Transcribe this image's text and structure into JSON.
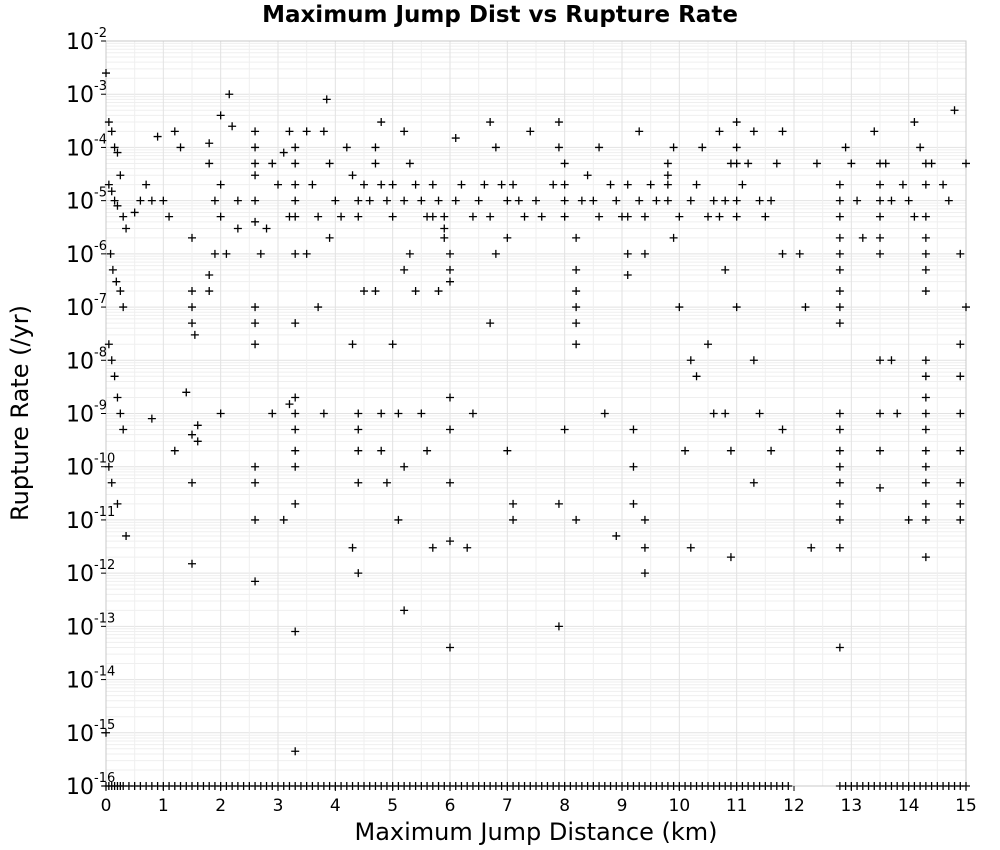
{
  "chart_data": {
    "type": "scatter",
    "title": "Maximum Jump Dist vs Rupture Rate",
    "xlabel": "Maximum Jump Distance (km)",
    "ylabel": "Rupture Rate (/yr)",
    "xlim": [
      0,
      15
    ],
    "ylim": [
      1e-16,
      0.01
    ],
    "yscale": "log",
    "grid": true,
    "marker": "plus",
    "marker_color": "#000000",
    "x_ticks": [
      "0",
      "1",
      "2",
      "3",
      "4",
      "5",
      "6",
      "7",
      "8",
      "9",
      "10",
      "11",
      "12",
      "13",
      "14",
      "15"
    ],
    "y_ticks": [
      {
        "base": "10",
        "exp": "-2"
      },
      {
        "base": "10",
        "exp": "-3"
      },
      {
        "base": "10",
        "exp": "-4"
      },
      {
        "base": "10",
        "exp": "-5"
      },
      {
        "base": "10",
        "exp": "-6"
      },
      {
        "base": "10",
        "exp": "-7"
      },
      {
        "base": "10",
        "exp": "-8"
      },
      {
        "base": "10",
        "exp": "-9"
      },
      {
        "base": "10",
        "exp": "-10"
      },
      {
        "base": "10",
        "exp": "-11"
      },
      {
        "base": "10",
        "exp": "-12"
      },
      {
        "base": "10",
        "exp": "-13"
      },
      {
        "base": "10",
        "exp": "-14"
      },
      {
        "base": "10",
        "exp": "-15"
      },
      {
        "base": "10",
        "exp": "-16"
      }
    ],
    "points": [
      [
        0.0,
        0.0025
      ],
      [
        0.05,
        0.0003
      ],
      [
        0.1,
        0.0002
      ],
      [
        0.15,
        0.0001
      ],
      [
        0.2,
        8e-05
      ],
      [
        0.25,
        3e-05
      ],
      [
        0.05,
        2e-05
      ],
      [
        0.1,
        1.5e-05
      ],
      [
        0.15,
        1e-05
      ],
      [
        0.2,
        8e-06
      ],
      [
        0.3,
        5e-06
      ],
      [
        0.35,
        3e-06
      ],
      [
        0.08,
        1e-06
      ],
      [
        0.12,
        5e-07
      ],
      [
        0.18,
        3e-07
      ],
      [
        0.25,
        2e-07
      ],
      [
        0.3,
        1e-07
      ],
      [
        0.05,
        2e-08
      ],
      [
        0.1,
        1e-08
      ],
      [
        0.15,
        5e-09
      ],
      [
        0.2,
        2e-09
      ],
      [
        0.25,
        1e-09
      ],
      [
        0.3,
        5e-10
      ],
      [
        0.05,
        1e-10
      ],
      [
        0.1,
        5e-11
      ],
      [
        0.2,
        2e-11
      ],
      [
        0.35,
        5e-12
      ],
      [
        0.0,
        1e-15
      ],
      [
        0.5,
        6e-06
      ],
      [
        0.6,
        1e-05
      ],
      [
        0.7,
        2e-05
      ],
      [
        0.8,
        1e-05
      ],
      [
        0.9,
        0.00016
      ],
      [
        0.8,
        8e-10
      ],
      [
        1.0,
        1e-05
      ],
      [
        1.1,
        5e-06
      ],
      [
        1.2,
        0.0002
      ],
      [
        1.3,
        0.0001
      ],
      [
        1.2,
        2e-10
      ],
      [
        1.4,
        2.5e-09
      ],
      [
        1.5,
        2e-06
      ],
      [
        1.5,
        2e-07
      ],
      [
        1.5,
        1e-07
      ],
      [
        1.5,
        5e-08
      ],
      [
        1.55,
        3e-08
      ],
      [
        1.5,
        4e-10
      ],
      [
        1.5,
        5e-11
      ],
      [
        1.5,
        1.5e-12
      ],
      [
        1.6,
        6e-10
      ],
      [
        1.6,
        3e-10
      ],
      [
        1.8,
        0.00012
      ],
      [
        1.8,
        5e-05
      ],
      [
        1.8,
        4e-07
      ],
      [
        1.8,
        2e-07
      ],
      [
        1.9,
        1e-05
      ],
      [
        1.9,
        1e-06
      ],
      [
        2.0,
        0.0004
      ],
      [
        2.0,
        2e-05
      ],
      [
        2.0,
        5e-06
      ],
      [
        2.1,
        1e-06
      ],
      [
        2.15,
        0.001
      ],
      [
        2.2,
        0.00025
      ],
      [
        2.3,
        1e-05
      ],
      [
        2.3,
        3e-06
      ],
      [
        2.0,
        1e-09
      ],
      [
        2.6,
        0.0002
      ],
      [
        2.6,
        0.0001
      ],
      [
        2.6,
        5e-05
      ],
      [
        2.6,
        3e-05
      ],
      [
        2.6,
        1e-05
      ],
      [
        2.6,
        4e-06
      ],
      [
        2.6,
        1e-07
      ],
      [
        2.6,
        5e-08
      ],
      [
        2.6,
        2e-08
      ],
      [
        2.6,
        1e-10
      ],
      [
        2.6,
        5e-11
      ],
      [
        2.6,
        1e-11
      ],
      [
        2.6,
        7e-13
      ],
      [
        2.7,
        1e-06
      ],
      [
        2.8,
        3e-06
      ],
      [
        2.9,
        5e-05
      ],
      [
        2.9,
        1e-09
      ],
      [
        3.0,
        2e-05
      ],
      [
        3.1,
        8e-05
      ],
      [
        3.1,
        1e-11
      ],
      [
        3.2,
        0.0002
      ],
      [
        3.2,
        5e-06
      ],
      [
        3.2,
        1.5e-09
      ],
      [
        3.3,
        0.0001
      ],
      [
        3.3,
        5e-05
      ],
      [
        3.3,
        2e-05
      ],
      [
        3.3,
        1e-05
      ],
      [
        3.3,
        5e-06
      ],
      [
        3.3,
        1e-06
      ],
      [
        3.3,
        5e-08
      ],
      [
        3.3,
        2e-09
      ],
      [
        3.3,
        1e-09
      ],
      [
        3.3,
        5e-10
      ],
      [
        3.3,
        2e-10
      ],
      [
        3.3,
        1e-10
      ],
      [
        3.3,
        2e-11
      ],
      [
        3.3,
        8e-14
      ],
      [
        3.3,
        4.5e-16
      ],
      [
        3.5,
        0.0002
      ],
      [
        3.5,
        1e-06
      ],
      [
        3.6,
        2e-05
      ],
      [
        3.7,
        5e-06
      ],
      [
        3.7,
        1e-07
      ],
      [
        3.8,
        0.0002
      ],
      [
        3.8,
        1e-09
      ],
      [
        3.85,
        0.0008
      ],
      [
        3.9,
        5e-05
      ],
      [
        3.9,
        2e-06
      ],
      [
        4.0,
        1e-05
      ],
      [
        4.1,
        5e-06
      ],
      [
        4.2,
        0.0001
      ],
      [
        4.3,
        3e-05
      ],
      [
        4.3,
        2e-08
      ],
      [
        4.3,
        3e-12
      ],
      [
        4.4,
        1e-05
      ],
      [
        4.4,
        5e-06
      ],
      [
        4.4,
        1e-09
      ],
      [
        4.4,
        5e-10
      ],
      [
        4.4,
        2e-10
      ],
      [
        4.4,
        5e-11
      ],
      [
        4.4,
        1e-12
      ],
      [
        4.5,
        2e-05
      ],
      [
        4.5,
        2e-07
      ],
      [
        4.6,
        1e-05
      ],
      [
        4.7,
        0.0001
      ],
      [
        4.7,
        5e-05
      ],
      [
        4.7,
        2e-07
      ],
      [
        4.8,
        0.0003
      ],
      [
        4.8,
        2e-05
      ],
      [
        4.8,
        1e-09
      ],
      [
        4.8,
        2e-10
      ],
      [
        4.9,
        1e-05
      ],
      [
        4.9,
        5e-11
      ],
      [
        5.0,
        2e-05
      ],
      [
        5.0,
        5e-06
      ],
      [
        5.0,
        2e-08
      ],
      [
        5.1,
        1e-09
      ],
      [
        5.1,
        1e-11
      ],
      [
        5.2,
        0.0002
      ],
      [
        5.2,
        1e-05
      ],
      [
        5.2,
        5e-07
      ],
      [
        5.2,
        1e-10
      ],
      [
        5.2,
        2e-13
      ],
      [
        5.3,
        5e-05
      ],
      [
        5.3,
        1e-06
      ],
      [
        5.4,
        2e-05
      ],
      [
        5.4,
        2e-07
      ],
      [
        5.5,
        1e-05
      ],
      [
        5.5,
        1e-09
      ],
      [
        5.6,
        5e-06
      ],
      [
        5.6,
        2e-10
      ],
      [
        5.7,
        2e-05
      ],
      [
        5.7,
        5e-06
      ],
      [
        5.7,
        3e-12
      ],
      [
        5.8,
        1e-05
      ],
      [
        5.8,
        2e-07
      ],
      [
        5.9,
        5e-06
      ],
      [
        5.9,
        3e-06
      ],
      [
        5.9,
        2e-06
      ],
      [
        6.0,
        1e-06
      ],
      [
        6.0,
        5e-07
      ],
      [
        6.0,
        3e-07
      ],
      [
        6.0,
        4e-12
      ],
      [
        6.0,
        4e-14
      ],
      [
        6.0,
        2e-09
      ],
      [
        6.0,
        5e-10
      ],
      [
        6.0,
        5e-11
      ],
      [
        6.1,
        0.00015
      ],
      [
        6.1,
        1e-05
      ],
      [
        6.2,
        2e-05
      ],
      [
        6.3,
        3e-12
      ],
      [
        6.4,
        5e-06
      ],
      [
        6.4,
        1e-09
      ],
      [
        6.5,
        1e-05
      ],
      [
        6.6,
        2e-05
      ],
      [
        6.7,
        0.0003
      ],
      [
        6.7,
        5e-06
      ],
      [
        6.7,
        5e-08
      ],
      [
        6.8,
        0.0001
      ],
      [
        6.8,
        1e-06
      ],
      [
        6.9,
        2e-05
      ],
      [
        7.0,
        1e-05
      ],
      [
        7.0,
        2e-06
      ],
      [
        7.0,
        2e-10
      ],
      [
        7.1,
        2e-05
      ],
      [
        7.1,
        1e-11
      ],
      [
        7.1,
        2e-11
      ],
      [
        7.2,
        1e-05
      ],
      [
        7.3,
        5e-06
      ],
      [
        7.4,
        0.0002
      ],
      [
        7.5,
        1e-05
      ],
      [
        7.6,
        5e-06
      ],
      [
        7.8,
        2e-05
      ],
      [
        7.9,
        0.0003
      ],
      [
        7.9,
        0.0001
      ],
      [
        8.0,
        5e-05
      ],
      [
        8.0,
        2e-05
      ],
      [
        8.0,
        1e-05
      ],
      [
        8.0,
        5e-06
      ],
      [
        7.9,
        1e-13
      ],
      [
        7.9,
        2e-11
      ],
      [
        8.0,
        5e-10
      ],
      [
        8.2,
        2e-06
      ],
      [
        8.2,
        5e-07
      ],
      [
        8.2,
        2e-07
      ],
      [
        8.2,
        1e-07
      ],
      [
        8.2,
        5e-08
      ],
      [
        8.2,
        2e-08
      ],
      [
        8.2,
        1e-11
      ],
      [
        8.3,
        1e-05
      ],
      [
        8.4,
        3e-05
      ],
      [
        8.5,
        1e-05
      ],
      [
        8.6,
        5e-06
      ],
      [
        8.6,
        0.0001
      ],
      [
        8.7,
        1e-09
      ],
      [
        8.8,
        2e-05
      ],
      [
        8.9,
        1e-05
      ],
      [
        8.9,
        5e-12
      ],
      [
        9.0,
        5e-06
      ],
      [
        9.1,
        2e-05
      ],
      [
        9.1,
        5e-06
      ],
      [
        9.1,
        1e-06
      ],
      [
        9.1,
        4e-07
      ],
      [
        9.2,
        1e-10
      ],
      [
        9.2,
        2e-11
      ],
      [
        9.2,
        5e-10
      ],
      [
        9.3,
        1e-05
      ],
      [
        9.3,
        0.0002
      ],
      [
        9.4,
        5e-06
      ],
      [
        9.4,
        1e-06
      ],
      [
        9.4,
        1e-11
      ],
      [
        9.4,
        3e-12
      ],
      [
        9.4,
        1e-12
      ],
      [
        9.5,
        2e-05
      ],
      [
        9.6,
        1e-05
      ],
      [
        9.8,
        5e-05
      ],
      [
        9.8,
        3e-05
      ],
      [
        9.8,
        2e-05
      ],
      [
        9.8,
        1e-05
      ],
      [
        9.9,
        0.0001
      ],
      [
        9.9,
        2e-06
      ],
      [
        10.0,
        5e-06
      ],
      [
        10.0,
        1e-07
      ],
      [
        10.1,
        2e-10
      ],
      [
        10.2,
        1e-05
      ],
      [
        10.2,
        1e-08
      ],
      [
        10.2,
        3e-12
      ],
      [
        10.3,
        2e-05
      ],
      [
        10.3,
        5e-09
      ],
      [
        10.4,
        0.0001
      ],
      [
        10.5,
        5e-06
      ],
      [
        10.5,
        2e-08
      ],
      [
        10.6,
        1e-05
      ],
      [
        10.6,
        1e-09
      ],
      [
        10.7,
        0.0002
      ],
      [
        10.7,
        5e-06
      ],
      [
        10.8,
        1e-05
      ],
      [
        10.8,
        5e-07
      ],
      [
        10.8,
        1e-09
      ],
      [
        10.9,
        5e-05
      ],
      [
        10.9,
        2e-10
      ],
      [
        10.9,
        2e-12
      ],
      [
        11.0,
        0.0003
      ],
      [
        11.0,
        0.0001
      ],
      [
        11.0,
        5e-05
      ],
      [
        11.0,
        1e-05
      ],
      [
        11.0,
        5e-06
      ],
      [
        11.0,
        1e-07
      ],
      [
        11.1,
        2e-05
      ],
      [
        11.2,
        5e-05
      ],
      [
        11.3,
        0.0002
      ],
      [
        11.3,
        1e-08
      ],
      [
        11.3,
        5e-11
      ],
      [
        11.4,
        1e-05
      ],
      [
        11.4,
        1e-09
      ],
      [
        11.5,
        5e-06
      ],
      [
        11.6,
        1e-05
      ],
      [
        11.6,
        2e-10
      ],
      [
        11.7,
        5e-05
      ],
      [
        11.8,
        0.0002
      ],
      [
        11.8,
        1e-06
      ],
      [
        11.8,
        5e-10
      ],
      [
        12.1,
        1e-06
      ],
      [
        12.2,
        1e-07
      ],
      [
        12.3,
        3e-12
      ],
      [
        12.4,
        5e-05
      ],
      [
        12.8,
        2e-05
      ],
      [
        12.8,
        1e-05
      ],
      [
        12.8,
        5e-06
      ],
      [
        12.8,
        2e-06
      ],
      [
        12.8,
        1e-06
      ],
      [
        12.8,
        5e-07
      ],
      [
        12.8,
        2e-07
      ],
      [
        12.8,
        1e-07
      ],
      [
        12.8,
        5e-08
      ],
      [
        12.8,
        1e-09
      ],
      [
        12.8,
        5e-10
      ],
      [
        12.8,
        2e-10
      ],
      [
        12.8,
        1e-10
      ],
      [
        12.8,
        5e-11
      ],
      [
        12.8,
        2e-11
      ],
      [
        12.8,
        1e-11
      ],
      [
        12.8,
        3e-12
      ],
      [
        12.8,
        4e-14
      ],
      [
        12.9,
        0.0001
      ],
      [
        13.0,
        5e-05
      ],
      [
        13.1,
        1e-05
      ],
      [
        13.2,
        2e-06
      ],
      [
        13.4,
        0.0002
      ],
      [
        13.5,
        5e-05
      ],
      [
        13.5,
        2e-05
      ],
      [
        13.5,
        1e-05
      ],
      [
        13.5,
        5e-06
      ],
      [
        13.5,
        2e-06
      ],
      [
        13.5,
        1e-06
      ],
      [
        13.5,
        1e-08
      ],
      [
        13.5,
        1e-09
      ],
      [
        13.5,
        2e-10
      ],
      [
        13.5,
        4e-11
      ],
      [
        13.6,
        5e-05
      ],
      [
        13.7,
        1e-05
      ],
      [
        13.7,
        1e-08
      ],
      [
        13.8,
        1e-09
      ],
      [
        13.9,
        2e-05
      ],
      [
        14.0,
        1e-05
      ],
      [
        14.0,
        1e-11
      ],
      [
        14.1,
        5e-06
      ],
      [
        14.1,
        0.0003
      ],
      [
        14.2,
        0.0001
      ],
      [
        14.3,
        5e-05
      ],
      [
        14.3,
        2e-05
      ],
      [
        14.3,
        5e-06
      ],
      [
        14.3,
        2e-06
      ],
      [
        14.3,
        1e-06
      ],
      [
        14.3,
        5e-07
      ],
      [
        14.3,
        2e-07
      ],
      [
        14.3,
        1e-08
      ],
      [
        14.3,
        5e-09
      ],
      [
        14.3,
        2e-09
      ],
      [
        14.3,
        1e-09
      ],
      [
        14.3,
        5e-10
      ],
      [
        14.3,
        2e-10
      ],
      [
        14.3,
        1e-10
      ],
      [
        14.3,
        5e-11
      ],
      [
        14.3,
        2e-11
      ],
      [
        14.3,
        1e-11
      ],
      [
        14.3,
        2e-12
      ],
      [
        14.4,
        5e-05
      ],
      [
        14.6,
        2e-05
      ],
      [
        14.7,
        1e-05
      ],
      [
        14.8,
        0.0005
      ],
      [
        14.9,
        1e-06
      ],
      [
        14.9,
        2e-08
      ],
      [
        14.9,
        5e-09
      ],
      [
        14.9,
        1e-09
      ],
      [
        14.9,
        2e-10
      ],
      [
        14.9,
        5e-11
      ],
      [
        14.9,
        2e-11
      ],
      [
        14.9,
        1e-11
      ],
      [
        15.0,
        5e-05
      ],
      [
        15.0,
        1e-07
      ]
    ],
    "baseline_points_x": [
      0.0,
      0.05,
      0.1,
      0.15,
      0.2,
      0.25,
      0.3,
      0.4,
      0.5,
      0.6,
      0.7,
      0.8,
      0.9,
      1.0,
      1.1,
      1.2,
      1.3,
      1.4,
      1.5,
      1.6,
      1.7,
      1.8,
      1.9,
      2.0,
      2.1,
      2.2,
      2.3,
      2.4,
      2.5,
      2.6,
      2.7,
      2.8,
      2.9,
      3.0,
      3.1,
      3.2,
      3.3,
      3.4,
      3.5,
      3.6,
      3.7,
      3.8,
      3.9,
      4.0,
      4.1,
      4.2,
      4.3,
      4.4,
      4.5,
      4.6,
      4.7,
      4.8,
      4.9,
      5.0,
      5.1,
      5.2,
      5.3,
      5.4,
      5.5,
      5.6,
      5.7,
      5.8,
      5.9,
      6.0,
      6.1,
      6.2,
      6.3,
      6.4,
      6.5,
      6.6,
      6.7,
      6.8,
      6.9,
      7.0,
      7.1,
      7.2,
      7.3,
      7.4,
      7.5,
      7.6,
      7.7,
      7.8,
      7.9,
      8.0,
      8.1,
      8.2,
      8.3,
      8.4,
      8.5,
      8.6,
      8.7,
      8.8,
      8.9,
      9.0,
      9.1,
      9.2,
      9.3,
      9.4,
      9.5,
      9.6,
      9.7,
      9.8,
      9.9,
      10.0,
      10.1,
      10.2,
      10.3,
      10.4,
      10.5,
      10.6,
      10.7,
      10.8,
      10.9,
      11.0,
      11.1,
      11.2,
      11.3,
      11.4,
      11.5,
      11.6,
      11.7,
      11.8,
      11.9,
      12.8,
      12.9,
      13.0,
      13.1,
      13.2,
      13.3,
      13.4,
      13.5,
      13.6,
      13.7,
      13.8,
      13.9,
      14.0,
      14.1,
      14.2,
      14.3,
      14.4,
      14.5,
      14.6,
      14.7,
      14.8,
      14.9,
      15.0
    ],
    "baseline_y": 1e-16
  }
}
